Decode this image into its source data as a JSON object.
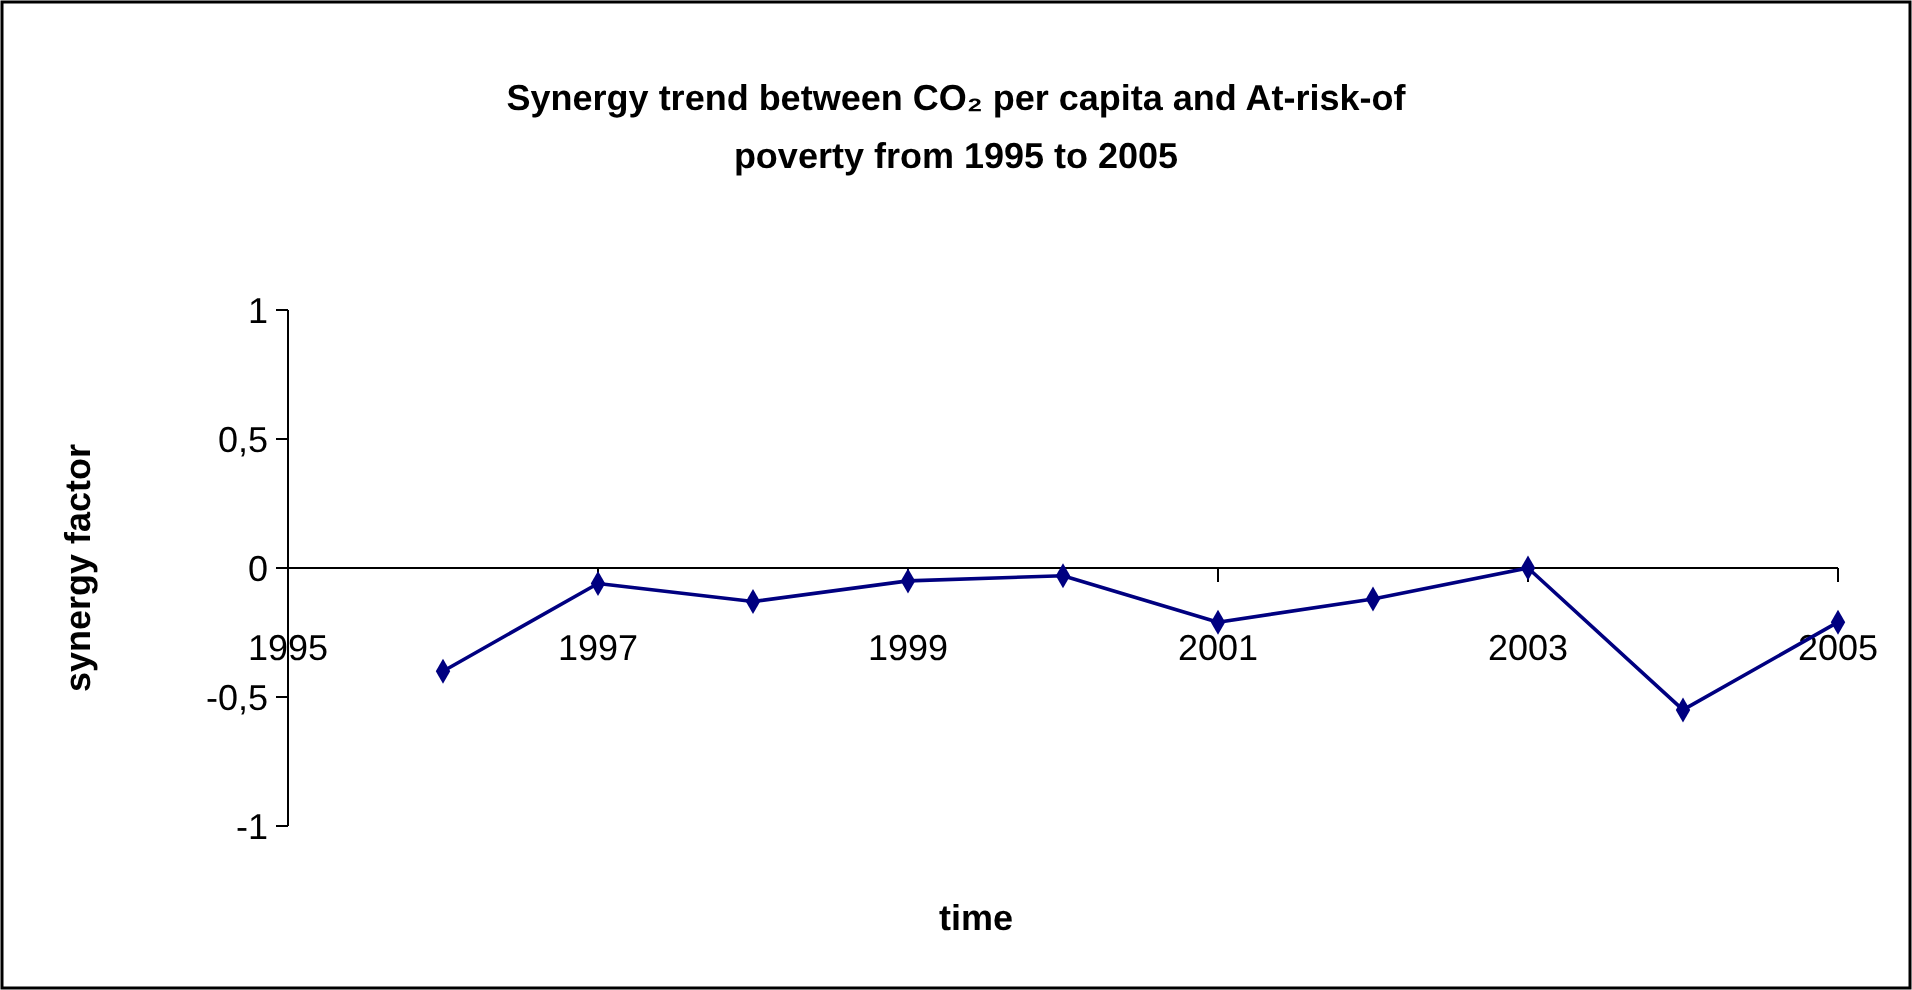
{
  "chart_data": {
    "type": "line",
    "title": "Synergy trend between CO₂ per capita and At-risk-of poverty from 1995 to 2005",
    "xlabel": "time",
    "ylabel": "synergy factor",
    "x": [
      1996,
      1997,
      1998,
      1999,
      2000,
      2001,
      2002,
      2003,
      2004,
      2005
    ],
    "series": [
      {
        "color": "#000080",
        "values": [
          -0.4,
          -0.06,
          -0.13,
          -0.05,
          -0.03,
          -0.21,
          -0.12,
          0,
          -0.55,
          -0.21
        ]
      }
    ],
    "xlim": [
      1995,
      2005
    ],
    "xticks": [
      1995,
      1997,
      1999,
      2001,
      2003,
      2005
    ],
    "ylim": [
      -1,
      1
    ],
    "yticks": [
      {
        "value": -1,
        "label": "-1"
      },
      {
        "value": -0.5,
        "label": "-0,5"
      },
      {
        "value": 0,
        "label": "0"
      },
      {
        "value": 0.5,
        "label": "0,5"
      },
      {
        "value": 1,
        "label": "1"
      }
    ],
    "marker": "diamond"
  }
}
